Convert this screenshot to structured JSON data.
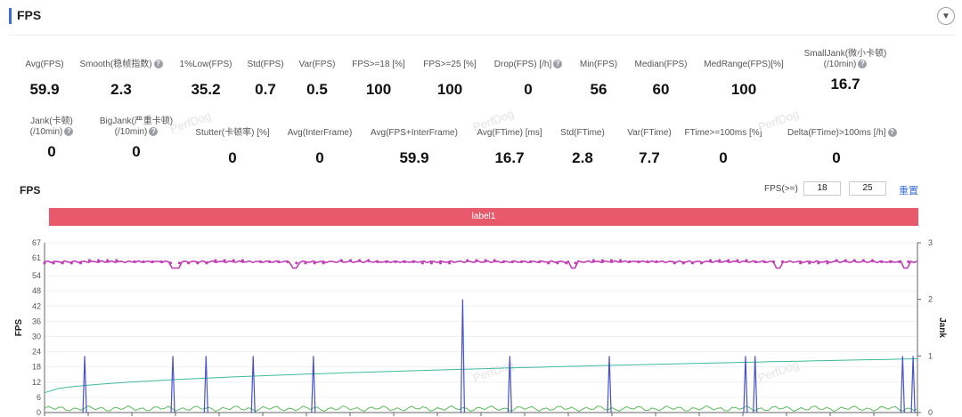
{
  "section": {
    "title": "FPS",
    "collapse_icon": "chevron-down-icon"
  },
  "metrics_row1": [
    {
      "label": "Avg(FPS)",
      "value": "59.9",
      "help": false
    },
    {
      "label": "Smooth(稳帧指数)",
      "value": "2.3",
      "help": true
    },
    {
      "label": "1%Low(FPS)",
      "value": "35.2",
      "help": false
    },
    {
      "label": "Std(FPS)",
      "value": "0.7",
      "help": false
    },
    {
      "label": "Var(FPS)",
      "value": "0.5",
      "help": false
    },
    {
      "label": "FPS>=18 [%]",
      "value": "100",
      "help": false
    },
    {
      "label": "FPS>=25 [%]",
      "value": "100",
      "help": false
    },
    {
      "label": "Drop(FPS) [/h]",
      "value": "0",
      "help": true
    },
    {
      "label": "Min(FPS)",
      "value": "56",
      "help": false
    },
    {
      "label": "Median(FPS)",
      "value": "60",
      "help": false
    },
    {
      "label": "MedRange(FPS)[%]",
      "value": "100",
      "help": false
    },
    {
      "label": "SmallJank(微小卡顿)",
      "label2": "(/10min)",
      "value": "16.7",
      "help": true
    }
  ],
  "metrics_row2": [
    {
      "label": "Jank(卡顿)",
      "label2": "(/10min)",
      "value": "0",
      "help": true
    },
    {
      "label": "BigJank(严重卡顿)",
      "label2": "(/10min)",
      "value": "0",
      "help": true
    },
    {
      "label": "Stutter(卡顿率) [%]",
      "value": "0",
      "help": false
    },
    {
      "label": "Avg(InterFrame)",
      "value": "0",
      "help": false
    },
    {
      "label": "Avg(FPS+InterFrame)",
      "value": "59.9",
      "help": false
    },
    {
      "label": "Avg(FTime) [ms]",
      "value": "16.7",
      "help": false
    },
    {
      "label": "Std(FTime)",
      "value": "2.8",
      "help": false
    },
    {
      "label": "Var(FTime)",
      "value": "7.7",
      "help": false
    },
    {
      "label": "FTime>=100ms [%]",
      "value": "0",
      "help": false
    },
    {
      "label": "Delta(FTime)>100ms [/h]",
      "value": "0",
      "help": true
    }
  ],
  "chart_header": {
    "title": "FPS",
    "threshold_label": "FPS(>=)",
    "threshold_1": "18",
    "threshold_2": "25",
    "reset_label": "重置"
  },
  "label_bar": {
    "text": "label1"
  },
  "watermark_text": "PerfDog",
  "chart_data": {
    "type": "line",
    "ylabel": "FPS",
    "y2label": "Jank",
    "y_ticks": [
      0,
      6,
      12,
      18,
      24,
      30,
      36,
      42,
      48,
      54,
      61,
      67
    ],
    "y2_ticks": [
      0,
      1,
      2,
      3
    ],
    "ylim": [
      0,
      67
    ],
    "y2lim": [
      0,
      3
    ],
    "series": [
      {
        "color": "#c13fb4",
        "baseline": 59.5,
        "drop_positions_pct": [
          15,
          28.7,
          60.5,
          84.1,
          98.6
        ],
        "drop_value": 57
      },
      {
        "color": "#4753c8",
        "spike_positions_pct": [
          4.6,
          14.7,
          18.5,
          23.9,
          30.8,
          47.9,
          53.3,
          64.7,
          80.3,
          81.4,
          98.3,
          99.5
        ],
        "spike_values": [
          1,
          1,
          1,
          1,
          1,
          2,
          1,
          1,
          1,
          1,
          1,
          1
        ]
      },
      {
        "color": "#3fb9a0",
        "start": 0.35,
        "end": 0.95
      },
      {
        "color": "#5bbb5b",
        "level": 0.1
      }
    ],
    "colors": {
      "fps": "#c13fb4",
      "jank": "#4753c8",
      "trend": "#3fb9a0",
      "interframe": "#5bbb5b",
      "label_bar": "#e85a6b"
    }
  }
}
